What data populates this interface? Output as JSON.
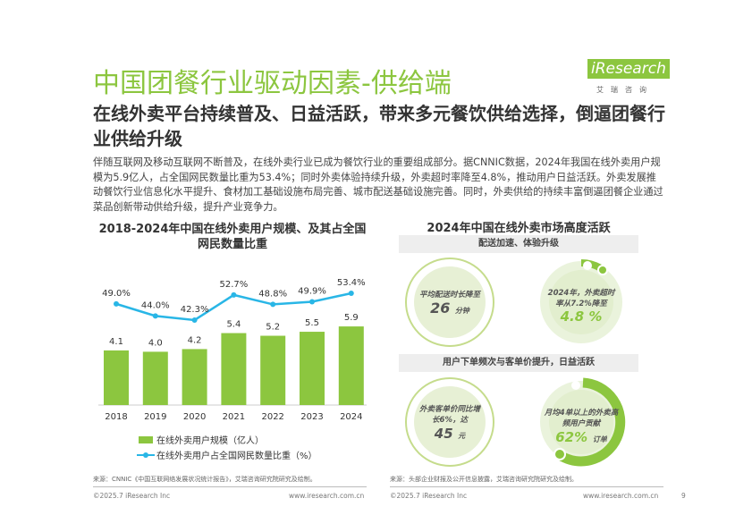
{
  "title": "中国团餐行业驱动因素-供给端",
  "subtitle": "在线外卖平台持续普及、日益活跃，带来多元餐饮供给选择，倒逼团餐行业供给升级",
  "logo": {
    "brand": "iResearch",
    "cn": "艾瑞咨询"
  },
  "body_text": "伴随互联网及移动互联网不断普及，在线外卖行业已成为餐饮行业的重要组成部分。据CNNIC数据，2024年我国在线外卖用户规模为5.9亿人，占全国网民数量比重为53.4%；同时外卖体验持续升级，外卖超时率降至4.8%，推动用户日益活跃。外卖发展推动餐饮行业信息化水平提升、食材加工基础设施布局完善、城市配送基础设施完善。同时，外卖供给的持续丰富倒逼团餐企业通过菜品创新带动供给升级，提升产业竞争力。",
  "chart_data": {
    "type": "bar+line",
    "title": "2018-2024年中国在线外卖用户规模、及其占全国网民数量比重",
    "categories": [
      "2018",
      "2019",
      "2020",
      "2021",
      "2022",
      "2023",
      "2024"
    ],
    "series": [
      {
        "name": "在线外卖用户规模（亿人）",
        "type": "bar",
        "values": [
          4.1,
          4.0,
          4.2,
          5.4,
          5.2,
          5.5,
          5.9
        ],
        "labels": [
          "4.1",
          "4.0",
          "4.2",
          "5.4",
          "5.2",
          "5.5",
          "5.9"
        ],
        "color": "#8cc63f"
      },
      {
        "name": "在线外卖用户占全国网民数量比重（%）",
        "type": "line",
        "values": [
          49.0,
          44.0,
          42.3,
          52.7,
          48.8,
          49.9,
          53.4
        ],
        "labels": [
          "49.0%",
          "44.0%",
          "42.3%",
          "52.7%",
          "48.8%",
          "49.9%",
          "53.4%"
        ],
        "color": "#29b6e6"
      }
    ],
    "legend": "bottom"
  },
  "right": {
    "title": "2024年中国在线外卖市场高度活跃",
    "band1": "配送加速、体验升级",
    "band2": "用户下单频次与客单价提升，日益活跃",
    "c1": {
      "text": "平均配送时长降至",
      "value": "26",
      "unit": "分钟"
    },
    "c2": {
      "text": "2024年，外卖超时率从7.2%降至",
      "value": "4.8 %",
      "fill": 0.07
    },
    "c3": {
      "text": "外卖客单价同比增长6%，达",
      "value": "45",
      "unit": "元"
    },
    "c4": {
      "text": "月均4单以上的外卖高频用户贡献",
      "value": "62%",
      "unit": "订单",
      "fill": 0.62
    }
  },
  "source_left": "来源：CNNIC《中国互联网络发展状况统计报告》，艾瑞咨询研究院研究及绘制。",
  "source_right": "来源：头部企业财报及公开信息披露，艾瑞咨询研究院研究及绘制。",
  "footer": {
    "copyright": "©2025.7 iResearch Inc",
    "url": "www.iresearch.com.cn",
    "page": "9"
  }
}
